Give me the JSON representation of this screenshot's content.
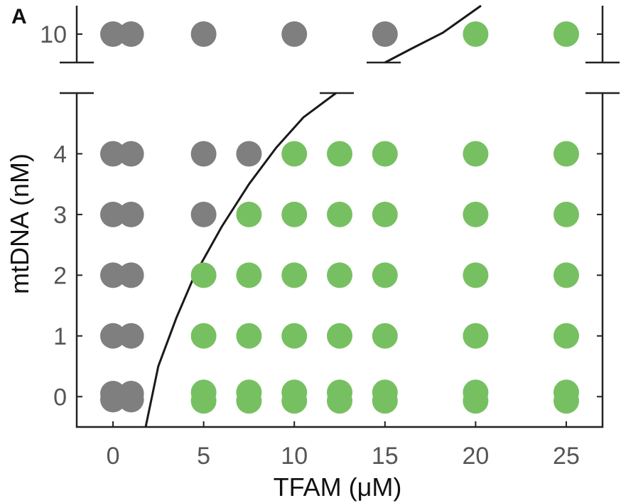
{
  "panel_label": "A",
  "chart_data": {
    "type": "scatter",
    "xlabel": "TFAM (μM)",
    "ylabel": "mtDNA (nM)",
    "xlim": [
      -2,
      27
    ],
    "x_ticks": [
      0,
      5,
      10,
      15,
      20,
      25
    ],
    "y_ticks": [
      0,
      1,
      2,
      3,
      4,
      10
    ],
    "y_axis_break": {
      "lower_range": [
        -0.5,
        5
      ],
      "upper_range": [
        9,
        11
      ]
    },
    "grid": false,
    "colors": {
      "gray": "#7f7f7f",
      "green": "#77c062",
      "curve": "#1a1a1a"
    },
    "series": [
      {
        "color": "gray",
        "points": [
          [
            0,
            10
          ],
          [
            1,
            10
          ],
          [
            5,
            10
          ],
          [
            10,
            10
          ],
          [
            15,
            10
          ],
          [
            0,
            4
          ],
          [
            1,
            4
          ],
          [
            5,
            4
          ],
          [
            7.5,
            4
          ],
          [
            0,
            3
          ],
          [
            1,
            3
          ],
          [
            5,
            3
          ],
          [
            0,
            2
          ],
          [
            1,
            2
          ],
          [
            0,
            1
          ],
          [
            1,
            1
          ],
          [
            0,
            0.05
          ],
          [
            1,
            0.05
          ],
          [
            0,
            -0.05
          ],
          [
            1,
            -0.05
          ]
        ]
      },
      {
        "color": "green",
        "points": [
          [
            20,
            10
          ],
          [
            25,
            10
          ],
          [
            10,
            4
          ],
          [
            12.5,
            4
          ],
          [
            15,
            4
          ],
          [
            20,
            4
          ],
          [
            25,
            4
          ],
          [
            7.5,
            3
          ],
          [
            10,
            3
          ],
          [
            12.5,
            3
          ],
          [
            15,
            3
          ],
          [
            20,
            3
          ],
          [
            25,
            3
          ],
          [
            5,
            2
          ],
          [
            7.5,
            2
          ],
          [
            10,
            2
          ],
          [
            12.5,
            2
          ],
          [
            15,
            2
          ],
          [
            20,
            2
          ],
          [
            25,
            2
          ],
          [
            5,
            1
          ],
          [
            7.5,
            1
          ],
          [
            10,
            1
          ],
          [
            12.5,
            1
          ],
          [
            15,
            1
          ],
          [
            20,
            1
          ],
          [
            25,
            1
          ],
          [
            5,
            0.07
          ],
          [
            7.5,
            0.07
          ],
          [
            10,
            0.07
          ],
          [
            12.5,
            0.07
          ],
          [
            15,
            0.07
          ],
          [
            20,
            0.07
          ],
          [
            25,
            0.07
          ],
          [
            5,
            -0.07
          ],
          [
            7.5,
            -0.07
          ],
          [
            10,
            -0.07
          ],
          [
            12.5,
            -0.07
          ],
          [
            15,
            -0.07
          ],
          [
            20,
            -0.07
          ],
          [
            25,
            -0.07
          ]
        ]
      }
    ],
    "boundary_curve": {
      "lower": [
        [
          1.8,
          -0.5
        ],
        [
          2.5,
          0.5
        ],
        [
          3.5,
          1.3
        ],
        [
          4.5,
          2.0
        ],
        [
          6,
          2.8
        ],
        [
          7.5,
          3.5
        ],
        [
          9,
          4.1
        ],
        [
          10.5,
          4.6
        ],
        [
          12.3,
          5.0
        ]
      ],
      "upper": [
        [
          15,
          9.0
        ],
        [
          16.5,
          9.5
        ],
        [
          18.2,
          10.05
        ],
        [
          20.3,
          11.0
        ]
      ]
    }
  }
}
